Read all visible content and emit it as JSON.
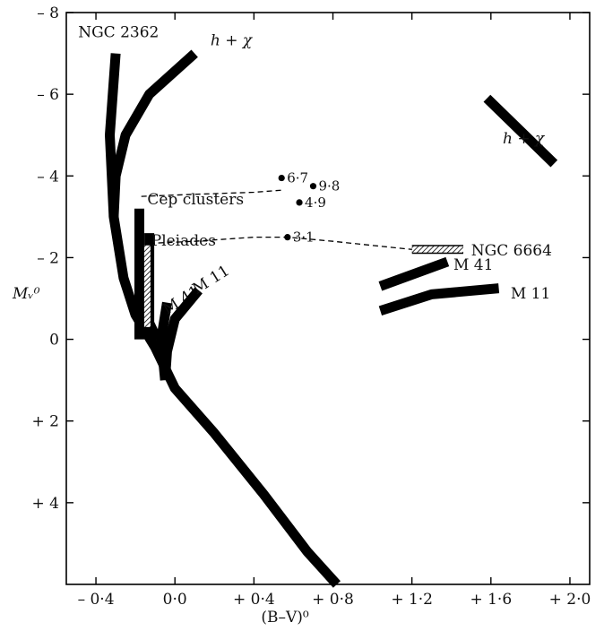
{
  "chart_data": {
    "type": "line",
    "title": "",
    "xlabel": "(B–V)⁰",
    "ylabel": "Mᵥ⁰",
    "xlim": [
      -0.55,
      2.1
    ],
    "ylim": [
      6.0,
      -8.0
    ],
    "x_ticks": [
      {
        "value": -0.4,
        "label": "– 0·4"
      },
      {
        "value": 0.0,
        "label": "0·0"
      },
      {
        "value": 0.4,
        "label": "+ 0·4"
      },
      {
        "value": 0.8,
        "label": "+ 0·8"
      },
      {
        "value": 1.2,
        "label": "+ 1·2"
      },
      {
        "value": 1.6,
        "label": "+ 1·6"
      },
      {
        "value": 2.0,
        "label": "+ 2·0"
      }
    ],
    "y_ticks": [
      {
        "value": -8,
        "label": "– 8"
      },
      {
        "value": -6,
        "label": "– 6"
      },
      {
        "value": -4,
        "label": "– 4"
      },
      {
        "value": -2,
        "label": "– 2"
      },
      {
        "value": 0,
        "label": "0"
      },
      {
        "value": 2,
        "label": "+ 2"
      },
      {
        "value": 4,
        "label": "+ 4"
      }
    ],
    "series": [
      {
        "name": "NGC 2362",
        "style": "thick",
        "label_at": [
          -0.49,
          -7.4
        ],
        "points": [
          [
            -0.3,
            -7.0
          ],
          [
            -0.33,
            -5.0
          ],
          [
            -0.31,
            -3.0
          ],
          [
            -0.26,
            -1.5
          ],
          [
            -0.2,
            -0.6
          ],
          [
            -0.1,
            0.2
          ],
          [
            0.0,
            1.2
          ],
          [
            0.2,
            2.3
          ],
          [
            0.45,
            3.8
          ],
          [
            0.67,
            5.2
          ],
          [
            0.82,
            6.0
          ]
        ]
      },
      {
        "name": "h + χ",
        "style": "thick",
        "label_at": [
          0.18,
          -7.2
        ],
        "points": [
          [
            -0.31,
            -3.0
          ],
          [
            -0.3,
            -4.0
          ],
          [
            -0.25,
            -5.0
          ],
          [
            -0.13,
            -6.0
          ],
          [
            0.1,
            -7.0
          ]
        ]
      },
      {
        "name": "h + χ",
        "style": "thick",
        "label_at": [
          1.66,
          -4.8
        ],
        "points": [
          [
            1.58,
            -5.9
          ],
          [
            1.92,
            -4.3
          ]
        ]
      },
      {
        "name": "Cep clusters",
        "style": "thick",
        "label_at": [
          -0.14,
          -3.3
        ],
        "points": [
          [
            -0.18,
            -3.2
          ],
          [
            -0.18,
            0.0
          ]
        ]
      },
      {
        "name": "Pleiades",
        "style": "thick",
        "label_at": [
          -0.12,
          -2.3
        ],
        "points": [
          [
            -0.13,
            -2.6
          ],
          [
            -0.13,
            -0.4
          ],
          [
            -0.09,
            0.0
          ]
        ]
      },
      {
        "name": "",
        "style": "hatched",
        "points": [
          [
            -0.14,
            -2.3
          ],
          [
            -0.14,
            -0.3
          ]
        ]
      },
      {
        "name": "M 41",
        "style": "thick",
        "label_at": [
          -0.04,
          -0.6
        ],
        "points": [
          [
            -0.04,
            -0.9
          ],
          [
            -0.07,
            0.0
          ],
          [
            -0.05,
            1.0
          ]
        ]
      },
      {
        "name": "M 11",
        "style": "thick",
        "label_at": [
          0.11,
          -1.1
        ],
        "points": [
          [
            0.12,
            -1.2
          ],
          [
            0.0,
            -0.5
          ],
          [
            -0.04,
            0.3
          ],
          [
            -0.05,
            1.0
          ]
        ]
      },
      {
        "name": "M 41",
        "style": "thick",
        "label_at": [
          1.41,
          -1.7
        ],
        "points": [
          [
            1.04,
            -1.3
          ],
          [
            1.38,
            -1.9
          ]
        ]
      },
      {
        "name": "M 11",
        "style": "thick",
        "label_at": [
          1.7,
          -1.0
        ],
        "points": [
          [
            1.04,
            -0.7
          ],
          [
            1.3,
            -1.1
          ],
          [
            1.64,
            -1.25
          ]
        ]
      },
      {
        "name": "NGC 6664",
        "style": "hatched",
        "label_at": [
          1.5,
          -2.05
        ],
        "points": [
          [
            1.2,
            -2.2
          ],
          [
            1.46,
            -2.2
          ]
        ]
      },
      {
        "name": "",
        "style": "dashed",
        "points": [
          [
            -0.17,
            -3.5
          ],
          [
            0.1,
            -3.55
          ],
          [
            0.4,
            -3.6
          ],
          [
            0.54,
            -3.65
          ]
        ]
      },
      {
        "name": "",
        "style": "dashed",
        "points": [
          [
            -0.13,
            -2.35
          ],
          [
            0.1,
            -2.4
          ],
          [
            0.4,
            -2.5
          ],
          [
            0.57,
            -2.5
          ],
          [
            0.8,
            -2.4
          ],
          [
            1.0,
            -2.3
          ],
          [
            1.2,
            -2.2
          ]
        ]
      }
    ],
    "points": [
      {
        "x": 0.54,
        "y": -3.95,
        "label": "6·7"
      },
      {
        "x": 0.7,
        "y": -3.75,
        "label": "9·8"
      },
      {
        "x": 0.63,
        "y": -3.35,
        "label": "4·9"
      },
      {
        "x": 0.57,
        "y": -2.5,
        "label": "3·1"
      }
    ],
    "grid": false,
    "legend": "none"
  }
}
